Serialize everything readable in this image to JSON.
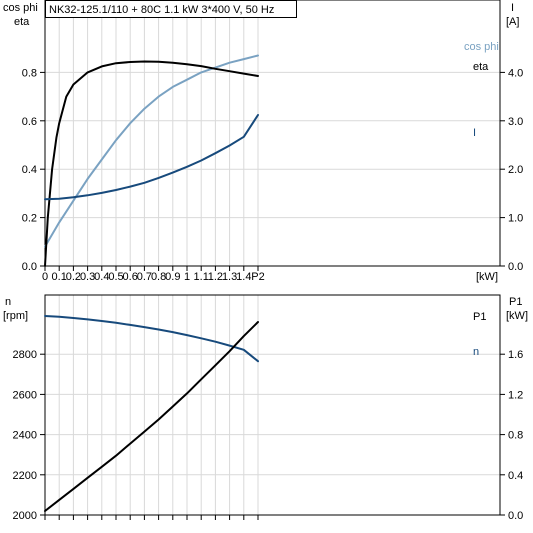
{
  "title": "NK32-125.1/110 + 80C   1.1 kW   3*400 V, 50 Hz",
  "colors": {
    "eta": "#000000",
    "cosphi": "#7aa2c2",
    "current": "#174a7c",
    "speed": "#174a7c",
    "power": "#000000",
    "grid": "#d9d9d9"
  },
  "chart_data": [
    {
      "type": "line",
      "x_label": "P2 [kW]",
      "x_ticks": [
        "0",
        "0.1",
        "0.2",
        "0.3",
        "0.4",
        "0.5",
        "0.6",
        "0.7",
        "0.8",
        "0.9",
        "1",
        "1.1",
        "1.2",
        "1.3",
        "1.4",
        "P2"
      ],
      "x_unit": "[kW]",
      "xlim": [
        0,
        1.5
      ],
      "left_axis": {
        "label_line1": "cos phi",
        "label_line2": "eta",
        "ticks": [
          "0.0",
          "0.2",
          "0.4",
          "0.6",
          "0.8"
        ],
        "ylim": [
          0,
          1.0
        ]
      },
      "right_axis": {
        "label_line1": "I",
        "label_line2": "[A]",
        "ticks": [
          "0.0",
          "1.0",
          "2.0",
          "3.0",
          "4.0"
        ],
        "ylim": [
          0,
          5.0
        ]
      },
      "grid": true,
      "series": [
        {
          "name": "eta",
          "axis": "left",
          "x": [
            0,
            0.02,
            0.05,
            0.08,
            0.1,
            0.15,
            0.2,
            0.3,
            0.4,
            0.5,
            0.6,
            0.7,
            0.8,
            0.9,
            1.0,
            1.1,
            1.2,
            1.3,
            1.4,
            1.5
          ],
          "y": [
            0,
            0.2,
            0.4,
            0.53,
            0.59,
            0.7,
            0.75,
            0.8,
            0.825,
            0.838,
            0.843,
            0.845,
            0.844,
            0.84,
            0.834,
            0.826,
            0.815,
            0.805,
            0.795,
            0.785
          ]
        },
        {
          "name": "cos phi",
          "axis": "left",
          "x": [
            0,
            0.1,
            0.2,
            0.3,
            0.4,
            0.5,
            0.6,
            0.7,
            0.8,
            0.9,
            1.0,
            1.1,
            1.2,
            1.3,
            1.4,
            1.5
          ],
          "y": [
            0.08,
            0.18,
            0.27,
            0.36,
            0.44,
            0.52,
            0.59,
            0.65,
            0.7,
            0.74,
            0.77,
            0.8,
            0.82,
            0.84,
            0.855,
            0.87
          ]
        },
        {
          "name": "I",
          "axis": "right",
          "x": [
            0,
            0.1,
            0.2,
            0.3,
            0.4,
            0.5,
            0.6,
            0.7,
            0.8,
            0.9,
            1.0,
            1.1,
            1.2,
            1.3,
            1.4,
            1.5
          ],
          "y": [
            1.38,
            1.39,
            1.42,
            1.46,
            1.51,
            1.57,
            1.64,
            1.72,
            1.82,
            1.93,
            2.05,
            2.18,
            2.33,
            2.49,
            2.67,
            3.12
          ]
        }
      ]
    },
    {
      "type": "line",
      "xlim": [
        0,
        1.5
      ],
      "left_axis": {
        "label_line1": "n",
        "label_line2": "[rpm]",
        "ticks": [
          "2000",
          "2200",
          "2400",
          "2600",
          "2800"
        ],
        "ylim": [
          2000,
          3000
        ]
      },
      "right_axis": {
        "label_line1": "P1",
        "label_line2": "[kW]",
        "ticks": [
          "0.0",
          "0.4",
          "0.8",
          "1.2",
          "1.6"
        ],
        "ylim": [
          0,
          2.0
        ]
      },
      "grid": true,
      "series": [
        {
          "name": "n",
          "axis": "left",
          "x": [
            0,
            0.1,
            0.2,
            0.3,
            0.4,
            0.5,
            0.6,
            0.7,
            0.8,
            0.9,
            1.0,
            1.1,
            1.2,
            1.3,
            1.4,
            1.5
          ],
          "y": [
            2990,
            2986,
            2980,
            2973,
            2965,
            2956,
            2946,
            2935,
            2923,
            2910,
            2895,
            2879,
            2862,
            2843,
            2822,
            2765
          ]
        },
        {
          "name": "P1",
          "axis": "right",
          "x": [
            0,
            0.1,
            0.2,
            0.3,
            0.4,
            0.5,
            0.6,
            0.7,
            0.8,
            0.9,
            1.0,
            1.1,
            1.2,
            1.3,
            1.4,
            1.5
          ],
          "y": [
            0.04,
            0.15,
            0.26,
            0.37,
            0.48,
            0.59,
            0.71,
            0.83,
            0.95,
            1.08,
            1.21,
            1.35,
            1.49,
            1.63,
            1.78,
            1.92
          ]
        }
      ]
    }
  ]
}
